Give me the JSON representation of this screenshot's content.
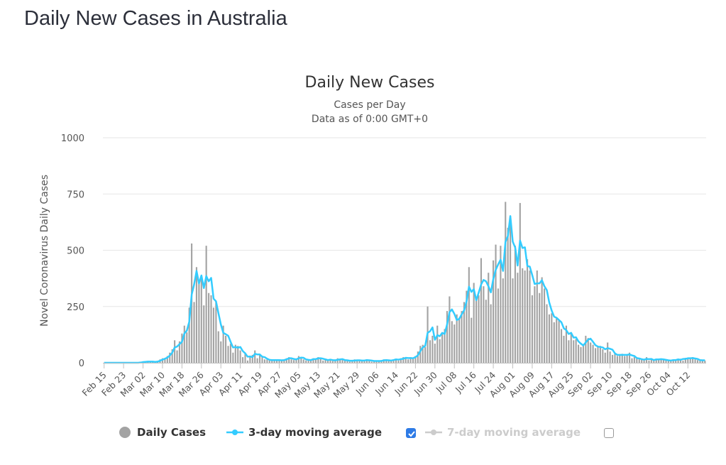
{
  "page": {
    "title": "Daily New Cases in Australia"
  },
  "chart_data": {
    "type": "bar",
    "title": "Daily New Cases",
    "subtitle_line1": "Cases per Day",
    "subtitle_line2": "Data as of 0:00 GMT+0",
    "ylabel": "Novel Coronavirus Daily Cases",
    "xlabel": "",
    "ylim": [
      0,
      1000
    ],
    "yticks": [
      {
        "value": 0,
        "label": "0"
      },
      {
        "value": 250,
        "label": "250"
      },
      {
        "value": 500,
        "label": "500"
      },
      {
        "value": 750,
        "label": "750"
      },
      {
        "value": 1000,
        "label": "1000"
      }
    ],
    "xticks": [
      {
        "index": 0,
        "label": "Feb 15"
      },
      {
        "index": 8,
        "label": "Feb 23"
      },
      {
        "index": 16,
        "label": "Mar 02"
      },
      {
        "index": 24,
        "label": "Mar 10"
      },
      {
        "index": 32,
        "label": "Mar 18"
      },
      {
        "index": 40,
        "label": "Mar 26"
      },
      {
        "index": 48,
        "label": "Apr 03"
      },
      {
        "index": 56,
        "label": "Apr 11"
      },
      {
        "index": 64,
        "label": "Apr 19"
      },
      {
        "index": 72,
        "label": "Apr 27"
      },
      {
        "index": 80,
        "label": "May 05"
      },
      {
        "index": 88,
        "label": "May 13"
      },
      {
        "index": 96,
        "label": "May 21"
      },
      {
        "index": 104,
        "label": "May 29"
      },
      {
        "index": 112,
        "label": "Jun 06"
      },
      {
        "index": 120,
        "label": "Jun 14"
      },
      {
        "index": 128,
        "label": "Jun 22"
      },
      {
        "index": 136,
        "label": "Jun 30"
      },
      {
        "index": 144,
        "label": "Jul 08"
      },
      {
        "index": 152,
        "label": "Jul 16"
      },
      {
        "index": 160,
        "label": "Jul 24"
      },
      {
        "index": 168,
        "label": "Aug 01"
      },
      {
        "index": 176,
        "label": "Aug 09"
      },
      {
        "index": 184,
        "label": "Aug 17"
      },
      {
        "index": 192,
        "label": "Aug 25"
      },
      {
        "index": 200,
        "label": "Sep 02"
      },
      {
        "index": 208,
        "label": "Sep 10"
      },
      {
        "index": 216,
        "label": "Sep 18"
      },
      {
        "index": 224,
        "label": "Sep 26"
      },
      {
        "index": 232,
        "label": "Oct 04"
      },
      {
        "index": 240,
        "label": "Oct 12"
      }
    ],
    "series": [
      {
        "name": "Daily Cases",
        "kind": "bar",
        "color": "#a3a3a3",
        "values": [
          0,
          0,
          0,
          0,
          0,
          0,
          0,
          0,
          0,
          0,
          0,
          1,
          0,
          0,
          1,
          3,
          4,
          5,
          6,
          3,
          5,
          3,
          8,
          15,
          20,
          20,
          30,
          45,
          60,
          100,
          55,
          95,
          130,
          165,
          135,
          245,
          530,
          270,
          425,
          360,
          380,
          255,
          520,
          310,
          300,
          245,
          275,
          140,
          95,
          165,
          120,
          75,
          85,
          45,
          80,
          75,
          55,
          25,
          45,
          10,
          30,
          35,
          55,
          20,
          35,
          25,
          15,
          14,
          10,
          12,
          15,
          10,
          12,
          10,
          15,
          20,
          25,
          15,
          12,
          18,
          30,
          20,
          15,
          10,
          15,
          12,
          20,
          15,
          25,
          20,
          10,
          15,
          12,
          15,
          8,
          10,
          20,
          15,
          12,
          10,
          12,
          5,
          10,
          15,
          8,
          10,
          12,
          8,
          15,
          10,
          5,
          10,
          8,
          5,
          12,
          15,
          8,
          10,
          12,
          15,
          18,
          10,
          20,
          25,
          22,
          15,
          25,
          20,
          30,
          50,
          75,
          80,
          70,
          250,
          100,
          120,
          85,
          165,
          105,
          130,
          150,
          230,
          295,
          185,
          170,
          215,
          200,
          230,
          270,
          320,
          425,
          200,
          355,
          280,
          300,
          465,
          340,
          280,
          400,
          260,
          455,
          525,
          330,
          520,
          375,
          715,
          600,
          640,
          375,
          520,
          400,
          710,
          420,
          410,
          460,
          410,
          300,
          340,
          410,
          310,
          380,
          330,
          260,
          215,
          220,
          180,
          200,
          190,
          150,
          120,
          165,
          100,
          135,
          100,
          105,
          80,
          70,
          80,
          120,
          110,
          90,
          80,
          65,
          70,
          75,
          60,
          45,
          90,
          50,
          35,
          40,
          30,
          35,
          40,
          30,
          35,
          45,
          20,
          25,
          18,
          15,
          14,
          12,
          25,
          10,
          15,
          12,
          18,
          15,
          14,
          15,
          10,
          8,
          12,
          10,
          15,
          12,
          18,
          10,
          22,
          20,
          18,
          25,
          15,
          12,
          10,
          12,
          10
        ]
      },
      {
        "name": "3-day moving average",
        "kind": "line",
        "color": "#33ccff",
        "values": [
          0,
          0,
          0,
          0,
          0,
          0,
          0,
          0,
          0,
          0,
          0,
          0,
          0,
          0,
          0,
          1,
          3,
          4,
          5,
          5,
          5,
          4,
          5,
          9,
          14,
          18,
          23,
          32,
          45,
          68,
          72,
          83,
          93,
          130,
          143,
          182,
          303,
          348,
          408,
          352,
          388,
          332,
          385,
          362,
          377,
          285,
          273,
          220,
          170,
          133,
          127,
          120,
          93,
          68,
          70,
          67,
          70,
          52,
          42,
          27,
          28,
          25,
          40,
          37,
          37,
          27,
          25,
          18,
          13,
          12,
          12,
          12,
          12,
          11,
          12,
          15,
          20,
          20,
          17,
          15,
          20,
          23,
          22,
          15,
          13,
          12,
          16,
          16,
          20,
          20,
          18,
          15,
          12,
          14,
          12,
          11,
          13,
          15,
          16,
          12,
          11,
          9,
          9,
          10,
          11,
          11,
          10,
          10,
          12,
          11,
          10,
          8,
          8,
          8,
          8,
          11,
          12,
          11,
          10,
          12,
          15,
          14,
          16,
          18,
          22,
          21,
          21,
          20,
          25,
          33,
          52,
          68,
          75,
          133,
          140,
          157,
          102,
          123,
          118,
          133,
          128,
          170,
          225,
          237,
          217,
          190,
          195,
          215,
          233,
          273,
          338,
          315,
          327,
          278,
          312,
          348,
          368,
          362,
          340,
          313,
          372,
          413,
          437,
          458,
          408,
          537,
          563,
          652,
          538,
          512,
          432,
          543,
          510,
          513,
          430,
          427,
          390,
          350,
          353,
          353,
          367,
          340,
          323,
          268,
          232,
          205,
          200,
          190,
          180,
          153,
          145,
          128,
          133,
          112,
          113,
          95,
          85,
          77,
          90,
          103,
          107,
          93,
          78,
          72,
          70,
          68,
          60,
          65,
          62,
          58,
          42,
          35,
          35,
          35,
          35,
          35,
          37,
          33,
          30,
          21,
          19,
          16,
          14,
          17,
          16,
          17,
          12,
          15,
          15,
          16,
          15,
          13,
          11,
          10,
          12,
          12,
          15,
          13,
          17,
          17,
          20,
          20,
          21,
          19,
          17,
          12,
          11,
          11
        ]
      },
      {
        "name": "7-day moving average",
        "kind": "line",
        "color": "#cccccc",
        "visible": false,
        "values": []
      }
    ]
  },
  "legend": {
    "daily_cases": "Daily Cases",
    "moving_avg_3": "3-day moving average",
    "moving_avg_7": "7-day moving average",
    "moving_avg_3_checked": true,
    "moving_avg_7_checked": false
  }
}
